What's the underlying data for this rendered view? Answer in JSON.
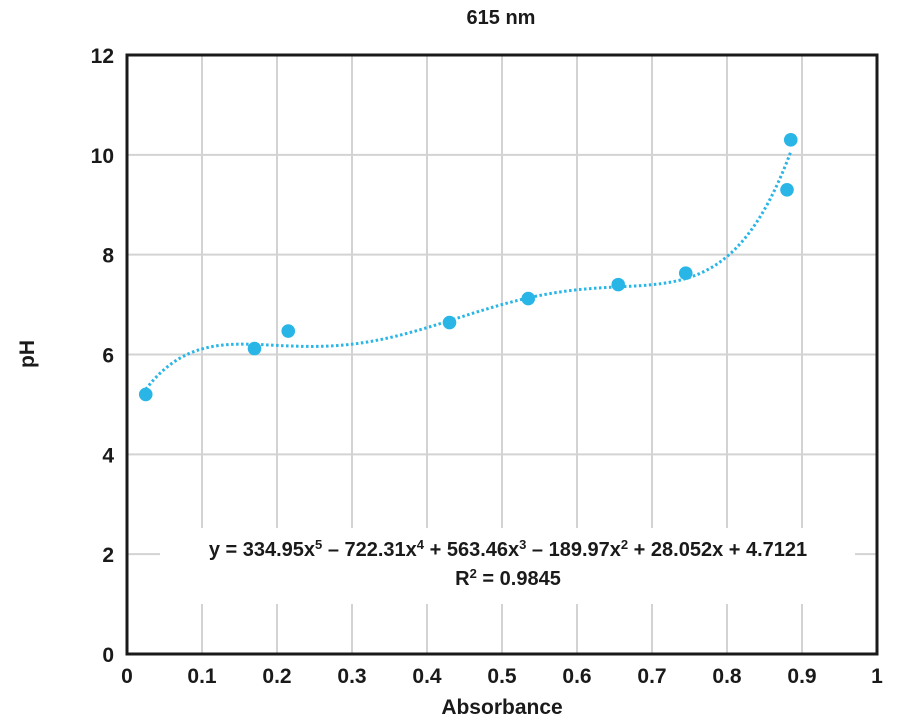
{
  "chart_data": {
    "type": "scatter",
    "title": "615 nm",
    "xlabel": "Absorbance",
    "ylabel": "pH",
    "xlim": [
      0,
      1
    ],
    "ylim": [
      0,
      12
    ],
    "xticks": [
      0,
      0.1,
      0.2,
      0.3,
      0.4,
      0.5,
      0.6,
      0.7,
      0.8,
      0.9,
      1
    ],
    "xtick_labels": [
      "0",
      "0.1",
      "0.2",
      "0.3",
      "0.4",
      "0.5",
      "0.6",
      "0.7",
      "0.8",
      "0.9",
      "1"
    ],
    "yticks": [
      0,
      2,
      4,
      6,
      8,
      10,
      12
    ],
    "ytick_labels": [
      "0",
      "2",
      "4",
      "6",
      "8",
      "10",
      "12"
    ],
    "grid": true,
    "series": [
      {
        "name": "pH vs Absorbance",
        "color": "#29b6e6",
        "points": [
          {
            "x": 0.025,
            "y": 5.2
          },
          {
            "x": 0.17,
            "y": 6.12
          },
          {
            "x": 0.215,
            "y": 6.47
          },
          {
            "x": 0.43,
            "y": 6.64
          },
          {
            "x": 0.535,
            "y": 7.12
          },
          {
            "x": 0.655,
            "y": 7.4
          },
          {
            "x": 0.745,
            "y": 7.63
          },
          {
            "x": 0.88,
            "y": 9.3
          },
          {
            "x": 0.885,
            "y": 10.3
          }
        ]
      }
    ],
    "trendline": {
      "type": "polynomial",
      "order": 5,
      "coefficients": [
        334.95,
        -722.31,
        563.46,
        -189.97,
        28.052,
        4.7121
      ],
      "x_range": [
        0.025,
        0.885
      ],
      "color": "#29b6e6",
      "style": "dotted"
    },
    "annotation": {
      "equation_parts": [
        "y = 334.95x",
        "5",
        " – 722.31x",
        "4",
        " + 563.46x",
        "3",
        " – 189.97x",
        "2",
        " + 28.052x + 4.7121"
      ],
      "r2_parts": [
        "R",
        "2",
        " = 0.9845"
      ]
    }
  }
}
